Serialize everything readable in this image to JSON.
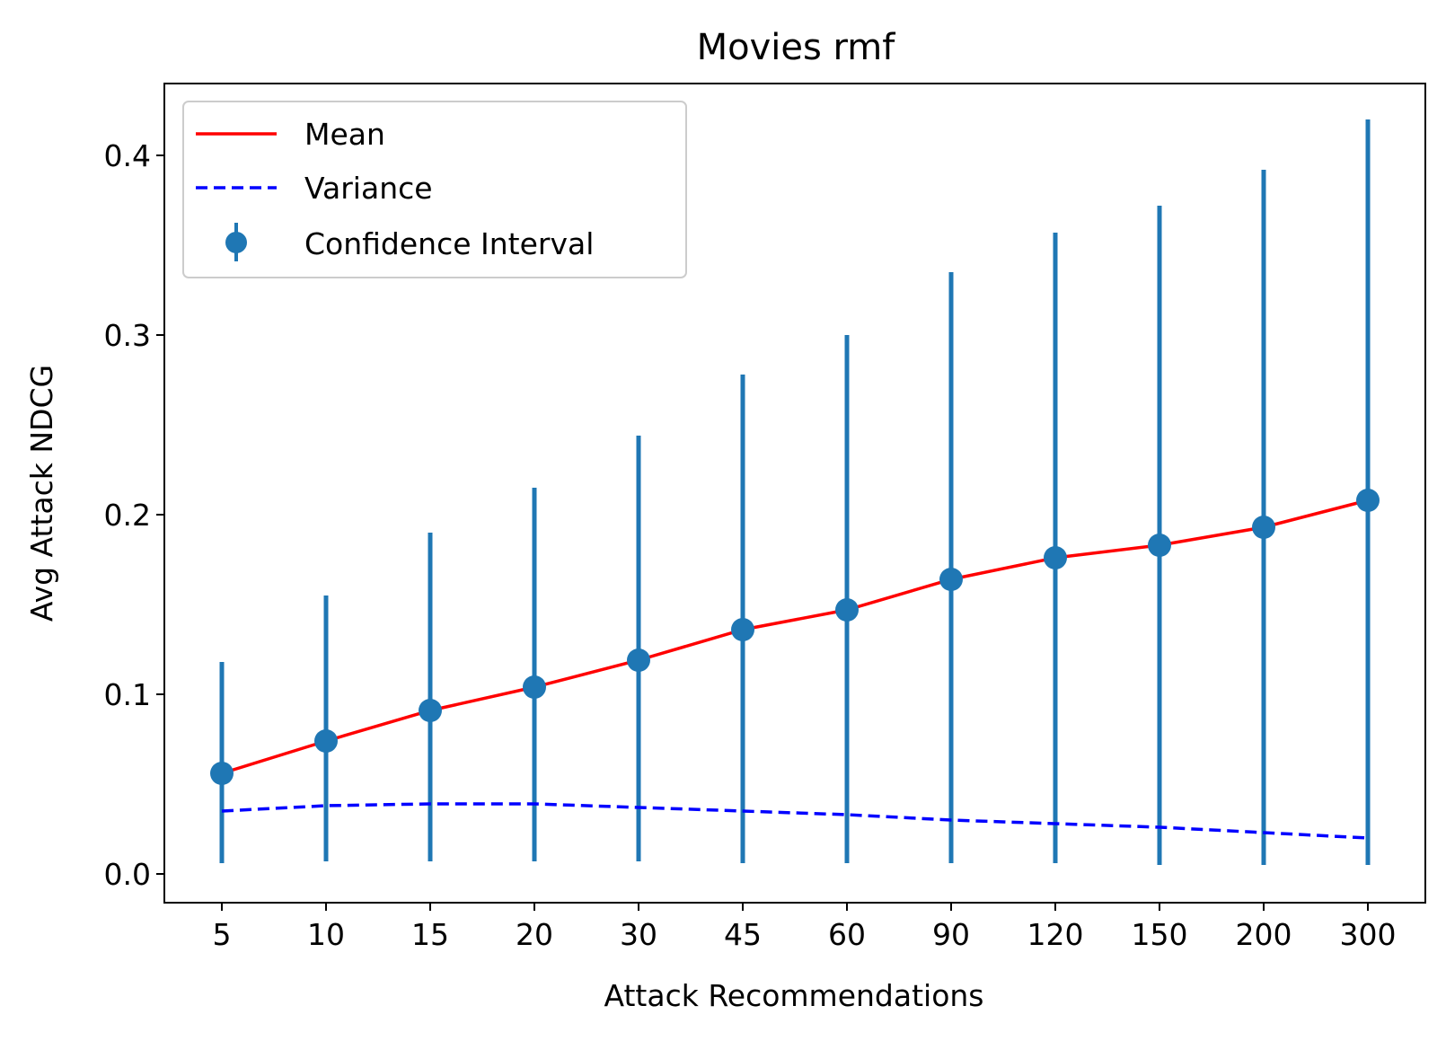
{
  "chart_data": {
    "type": "line",
    "title": "Movies rmf",
    "xlabel": "Attack Recommendations",
    "ylabel": "Avg Attack NDCG",
    "categories": [
      "5",
      "10",
      "15",
      "20",
      "30",
      "45",
      "60",
      "90",
      "120",
      "150",
      "200",
      "300"
    ],
    "ylim": [
      -0.016,
      0.44
    ],
    "yticks": [
      "0.0",
      "0.1",
      "0.2",
      "0.3",
      "0.4"
    ],
    "ytick_values": [
      0.0,
      0.1,
      0.2,
      0.3,
      0.4
    ],
    "grid": false,
    "legend_position": "top-left",
    "series": [
      {
        "name": "Mean",
        "style": "solid",
        "color": "#ff0000",
        "values": [
          0.056,
          0.074,
          0.091,
          0.104,
          0.119,
          0.136,
          0.147,
          0.164,
          0.176,
          0.183,
          0.193,
          0.208
        ]
      },
      {
        "name": "Variance",
        "style": "dashed",
        "color": "#0000ff",
        "values": [
          0.035,
          0.038,
          0.039,
          0.039,
          0.037,
          0.035,
          0.033,
          0.03,
          0.028,
          0.026,
          0.023,
          0.02
        ]
      },
      {
        "name": "Confidence Interval",
        "style": "errorbar",
        "color": "#1f77b4",
        "values": [
          0.056,
          0.074,
          0.091,
          0.104,
          0.119,
          0.136,
          0.147,
          0.164,
          0.176,
          0.183,
          0.193,
          0.208
        ],
        "lower": [
          0.006,
          0.007,
          0.007,
          0.007,
          0.007,
          0.006,
          0.006,
          0.006,
          0.006,
          0.005,
          0.005,
          0.005
        ],
        "upper": [
          0.118,
          0.155,
          0.19,
          0.215,
          0.244,
          0.278,
          0.3,
          0.335,
          0.357,
          0.372,
          0.392,
          0.42
        ]
      }
    ]
  }
}
